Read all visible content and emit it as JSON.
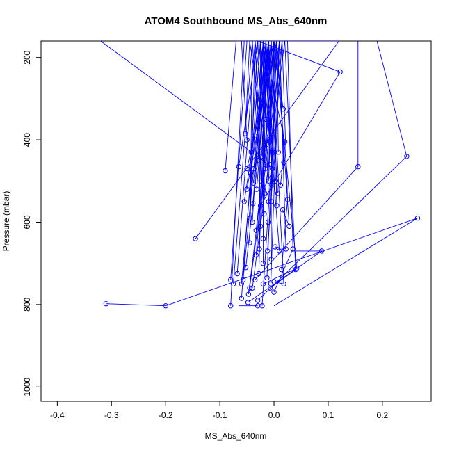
{
  "chart_data": {
    "type": "line",
    "title": "ATOM4 Southbound MS_Abs_640nm",
    "xlabel": "MS_Abs_640nm",
    "ylabel": "Pressure (mbar)",
    "xlim": [
      -0.43,
      0.29
    ],
    "ylim": [
      1035,
      160
    ],
    "y_reversed": true,
    "x_ticks": [
      -0.4,
      -0.3,
      -0.2,
      -0.1,
      0.0,
      0.1,
      0.2
    ],
    "x_tick_labels": [
      "-0.4",
      "-0.3",
      "-0.2",
      "-0.1",
      "0.0",
      "0.1",
      "0.2"
    ],
    "y_ticks": [
      200,
      400,
      600,
      800,
      1000
    ],
    "y_tick_labels": [
      "200",
      "400",
      "600",
      "800",
      "1000"
    ],
    "grid": false,
    "legend": "none",
    "series_color": "#0000ff",
    "points": [
      [
        -0.31,
        798
      ],
      [
        -0.2,
        803
      ],
      [
        -0.145,
        640
      ],
      [
        -0.09,
        475
      ],
      [
        -0.08,
        740
      ],
      [
        -0.08,
        803
      ],
      [
        -0.075,
        750
      ],
      [
        -0.068,
        725
      ],
      [
        -0.065,
        465
      ],
      [
        -0.06,
        785
      ],
      [
        -0.06,
        750
      ],
      [
        -0.057,
        740
      ],
      [
        -0.055,
        550
      ],
      [
        -0.053,
        385
      ],
      [
        -0.052,
        710
      ],
      [
        -0.05,
        520
      ],
      [
        -0.05,
        470
      ],
      [
        -0.05,
        400
      ],
      [
        -0.048,
        795
      ],
      [
        -0.047,
        775
      ],
      [
        -0.045,
        760
      ],
      [
        -0.045,
        650
      ],
      [
        -0.044,
        590
      ],
      [
        -0.043,
        480
      ],
      [
        -0.042,
        430
      ],
      [
        -0.04,
        760
      ],
      [
        -0.04,
        600
      ],
      [
        -0.039,
        555
      ],
      [
        -0.038,
        505
      ],
      [
        -0.037,
        470
      ],
      [
        -0.036,
        390
      ],
      [
        -0.035,
        740
      ],
      [
        -0.033,
        680
      ],
      [
        -0.033,
        620
      ],
      [
        -0.032,
        520
      ],
      [
        -0.03,
        450
      ],
      [
        -0.03,
        803
      ],
      [
        -0.03,
        790
      ],
      [
        -0.028,
        725
      ],
      [
        -0.027,
        665
      ],
      [
        -0.025,
        610
      ],
      [
        -0.025,
        560
      ],
      [
        -0.024,
        500
      ],
      [
        -0.023,
        440
      ],
      [
        -0.022,
        803
      ],
      [
        -0.02,
        750
      ],
      [
        -0.02,
        700
      ],
      [
        -0.02,
        640
      ],
      [
        -0.018,
        580
      ],
      [
        -0.017,
        530
      ],
      [
        -0.016,
        470
      ],
      [
        -0.015,
        420
      ],
      [
        -0.015,
        350
      ],
      [
        -0.013,
        735
      ],
      [
        -0.012,
        670
      ],
      [
        -0.011,
        600
      ],
      [
        -0.01,
        550
      ],
      [
        -0.01,
        500
      ],
      [
        -0.009,
        460
      ],
      [
        -0.008,
        405
      ],
      [
        -0.008,
        390
      ],
      [
        -0.007,
        760
      ],
      [
        -0.006,
        750
      ],
      [
        -0.005,
        690
      ],
      [
        -0.005,
        550
      ],
      [
        -0.004,
        510
      ],
      [
        -0.003,
        470
      ],
      [
        -0.002,
        430
      ],
      [
        0.0,
        770
      ],
      [
        0.0,
        745
      ],
      [
        0.002,
        660
      ],
      [
        0.003,
        500
      ],
      [
        0.005,
        560
      ],
      [
        0.007,
        530
      ],
      [
        0.008,
        430
      ],
      [
        0.01,
        670
      ],
      [
        0.012,
        510
      ],
      [
        0.014,
        715
      ],
      [
        0.016,
        570
      ],
      [
        0.017,
        325
      ],
      [
        0.018,
        750
      ],
      [
        0.018,
        455
      ],
      [
        0.02,
        405
      ],
      [
        0.022,
        665
      ],
      [
        0.025,
        545
      ],
      [
        0.028,
        610
      ],
      [
        0.035,
        665
      ],
      [
        0.04,
        715
      ],
      [
        0.042,
        712
      ],
      [
        0.088,
        670
      ],
      [
        0.122,
        235
      ],
      [
        0.155,
        465
      ],
      [
        0.245,
        440
      ],
      [
        0.265,
        590
      ]
    ],
    "profiles": [
      [
        [
          -0.31,
          798
        ],
        [
          -0.2,
          803
        ],
        [
          0.265,
          590
        ],
        [
          0.0,
          803
        ]
      ],
      [
        [
          -0.145,
          640
        ],
        [
          0.12,
          160
        ],
        [
          -0.07,
          160
        ]
      ],
      [
        [
          -0.32,
          160
        ],
        [
          0.0,
          470
        ],
        [
          -0.02,
          520
        ]
      ],
      [
        [
          -0.09,
          475
        ],
        [
          -0.07,
          160
        ]
      ],
      [
        [
          -0.08,
          740
        ],
        [
          -0.05,
          160
        ]
      ],
      [
        [
          -0.08,
          803
        ],
        [
          -0.055,
          160
        ]
      ],
      [
        [
          -0.075,
          750
        ],
        [
          -0.04,
          160
        ]
      ],
      [
        [
          -0.068,
          725
        ],
        [
          -0.035,
          160
        ]
      ],
      [
        [
          -0.065,
          465
        ],
        [
          -0.03,
          160
        ]
      ],
      [
        [
          -0.06,
          785
        ],
        [
          -0.025,
          160
        ]
      ],
      [
        [
          -0.06,
          750
        ],
        [
          -0.02,
          160
        ]
      ],
      [
        [
          -0.057,
          740
        ],
        [
          -0.015,
          160
        ]
      ],
      [
        [
          -0.055,
          550
        ],
        [
          -0.01,
          160
        ]
      ],
      [
        [
          -0.053,
          385
        ],
        [
          -0.045,
          160
        ]
      ],
      [
        [
          -0.052,
          710
        ],
        [
          -0.005,
          160
        ]
      ],
      [
        [
          -0.05,
          520
        ],
        [
          0.0,
          160
        ]
      ],
      [
        [
          -0.05,
          470
        ],
        [
          0.005,
          160
        ]
      ],
      [
        [
          -0.05,
          400
        ],
        [
          -0.06,
          160
        ]
      ],
      [
        [
          -0.048,
          795
        ],
        [
          0.088,
          670
        ],
        [
          0.04,
          670
        ]
      ],
      [
        [
          -0.047,
          775
        ],
        [
          0.01,
          160
        ]
      ],
      [
        [
          -0.045,
          760
        ],
        [
          0.015,
          160
        ]
      ],
      [
        [
          -0.045,
          650
        ],
        [
          -0.035,
          160
        ]
      ],
      [
        [
          -0.044,
          590
        ],
        [
          -0.04,
          160
        ]
      ],
      [
        [
          -0.043,
          480
        ],
        [
          -0.025,
          160
        ]
      ],
      [
        [
          -0.042,
          430
        ],
        [
          -0.03,
          160
        ]
      ],
      [
        [
          -0.04,
          760
        ],
        [
          0.02,
          160
        ]
      ],
      [
        [
          -0.04,
          600
        ],
        [
          -0.02,
          160
        ]
      ],
      [
        [
          -0.039,
          555
        ],
        [
          -0.015,
          160
        ]
      ],
      [
        [
          -0.038,
          505
        ],
        [
          -0.01,
          160
        ]
      ],
      [
        [
          -0.037,
          470
        ],
        [
          -0.005,
          160
        ]
      ],
      [
        [
          -0.036,
          390
        ],
        [
          0.0,
          160
        ]
      ],
      [
        [
          -0.035,
          740
        ],
        [
          0.155,
          465
        ],
        [
          0.155,
          160
        ]
      ],
      [
        [
          -0.033,
          680
        ],
        [
          0.0,
          160
        ]
      ],
      [
        [
          -0.033,
          620
        ],
        [
          0.005,
          160
        ]
      ],
      [
        [
          -0.032,
          520
        ],
        [
          -0.01,
          160
        ]
      ],
      [
        [
          -0.03,
          450
        ],
        [
          -0.02,
          160
        ]
      ],
      [
        [
          -0.03,
          803
        ],
        [
          -0.065,
          803
        ]
      ],
      [
        [
          -0.03,
          790
        ],
        [
          0.245,
          440
        ],
        [
          0.19,
          160
        ]
      ],
      [
        [
          -0.028,
          725
        ],
        [
          -0.015,
          160
        ]
      ],
      [
        [
          -0.027,
          665
        ],
        [
          -0.025,
          160
        ]
      ],
      [
        [
          -0.025,
          610
        ],
        [
          -0.005,
          160
        ]
      ],
      [
        [
          -0.025,
          560
        ],
        [
          0.122,
          235
        ],
        [
          -0.03,
          160
        ]
      ],
      [
        [
          -0.024,
          500
        ],
        [
          -0.035,
          160
        ]
      ],
      [
        [
          -0.023,
          440
        ],
        [
          -0.01,
          160
        ]
      ],
      [
        [
          -0.022,
          803
        ],
        [
          0.01,
          160
        ]
      ],
      [
        [
          -0.02,
          750
        ],
        [
          0.042,
          712
        ],
        [
          0.0,
          160
        ]
      ],
      [
        [
          -0.02,
          700
        ],
        [
          -0.02,
          160
        ]
      ],
      [
        [
          -0.02,
          640
        ],
        [
          -0.015,
          160
        ]
      ],
      [
        [
          -0.018,
          580
        ],
        [
          -0.04,
          160
        ]
      ],
      [
        [
          -0.017,
          530
        ],
        [
          -0.03,
          160
        ]
      ],
      [
        [
          -0.016,
          470
        ],
        [
          -0.025,
          160
        ]
      ],
      [
        [
          -0.015,
          420
        ],
        [
          -0.045,
          160
        ]
      ],
      [
        [
          -0.015,
          350
        ],
        [
          -0.035,
          160
        ]
      ],
      [
        [
          -0.013,
          735
        ],
        [
          0.005,
          160
        ]
      ],
      [
        [
          -0.012,
          670
        ],
        [
          0.015,
          160
        ]
      ],
      [
        [
          -0.011,
          600
        ],
        [
          -0.01,
          160
        ]
      ],
      [
        [
          -0.01,
          550
        ],
        [
          -0.02,
          160
        ]
      ],
      [
        [
          -0.01,
          500
        ],
        [
          0.0,
          160
        ]
      ],
      [
        [
          -0.009,
          460
        ],
        [
          -0.005,
          160
        ]
      ],
      [
        [
          -0.008,
          405
        ],
        [
          -0.015,
          160
        ]
      ],
      [
        [
          -0.008,
          390
        ],
        [
          -0.025,
          160
        ]
      ],
      [
        [
          -0.007,
          760
        ],
        [
          0.04,
          715
        ],
        [
          0.02,
          160
        ]
      ],
      [
        [
          -0.006,
          750
        ],
        [
          0.01,
          160
        ]
      ],
      [
        [
          -0.005,
          690
        ],
        [
          -0.005,
          160
        ]
      ],
      [
        [
          -0.005,
          550
        ],
        [
          0.005,
          160
        ]
      ],
      [
        [
          -0.004,
          510
        ],
        [
          -0.01,
          160
        ]
      ],
      [
        [
          -0.003,
          470
        ],
        [
          0.0,
          160
        ]
      ],
      [
        [
          -0.002,
          430
        ],
        [
          -0.02,
          160
        ]
      ],
      [
        [
          0.0,
          770
        ],
        [
          0.035,
          665
        ],
        [
          0.025,
          160
        ]
      ],
      [
        [
          0.0,
          745
        ],
        [
          0.018,
          750
        ],
        [
          -0.005,
          160
        ]
      ],
      [
        [
          0.002,
          660
        ],
        [
          0.022,
          665
        ],
        [
          0.01,
          160
        ]
      ],
      [
        [
          0.003,
          500
        ],
        [
          -0.015,
          160
        ]
      ],
      [
        [
          0.005,
          560
        ],
        [
          0.0,
          160
        ]
      ],
      [
        [
          0.007,
          530
        ],
        [
          -0.01,
          160
        ]
      ],
      [
        [
          0.008,
          430
        ],
        [
          0.005,
          160
        ]
      ],
      [
        [
          0.01,
          670
        ],
        [
          -0.02,
          160
        ]
      ],
      [
        [
          0.012,
          510
        ],
        [
          0.02,
          405
        ],
        [
          -0.02,
          160
        ]
      ],
      [
        [
          0.014,
          715
        ],
        [
          0.025,
          545
        ],
        [
          0.015,
          160
        ]
      ],
      [
        [
          0.016,
          570
        ],
        [
          0.028,
          610
        ],
        [
          0.005,
          160
        ]
      ],
      [
        [
          0.017,
          325
        ],
        [
          0.0,
          160
        ]
      ],
      [
        [
          0.018,
          455
        ],
        [
          0.01,
          160
        ]
      ]
    ]
  }
}
